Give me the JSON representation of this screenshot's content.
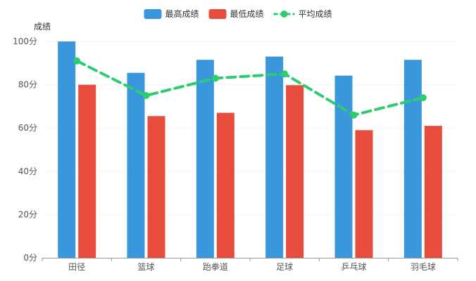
{
  "chart_data": {
    "type": "bar",
    "categories": [
      "田径",
      "篮球",
      "跆拳道",
      "足球",
      "乒乓球",
      "羽毛球"
    ],
    "series": [
      {
        "name": "最高成绩",
        "type": "bar",
        "color": "#3a97db",
        "values": [
          100,
          85.5,
          91.5,
          93,
          84.2,
          91.5
        ]
      },
      {
        "name": "最低成绩",
        "type": "bar",
        "color": "#e74c3c",
        "values": [
          80,
          65.5,
          67,
          79.8,
          59,
          61
        ]
      },
      {
        "name": "平均成绩",
        "type": "line",
        "style": "dashed",
        "color": "#2ecc71",
        "values": [
          91,
          75,
          83,
          85,
          66,
          74
        ]
      }
    ],
    "ylabel": "成绩",
    "ylim": [
      0,
      100
    ],
    "yticks": [
      0,
      20,
      40,
      60,
      80,
      100
    ],
    "ytick_format": "{v}分",
    "grid": true,
    "legend_position": "top-center"
  }
}
